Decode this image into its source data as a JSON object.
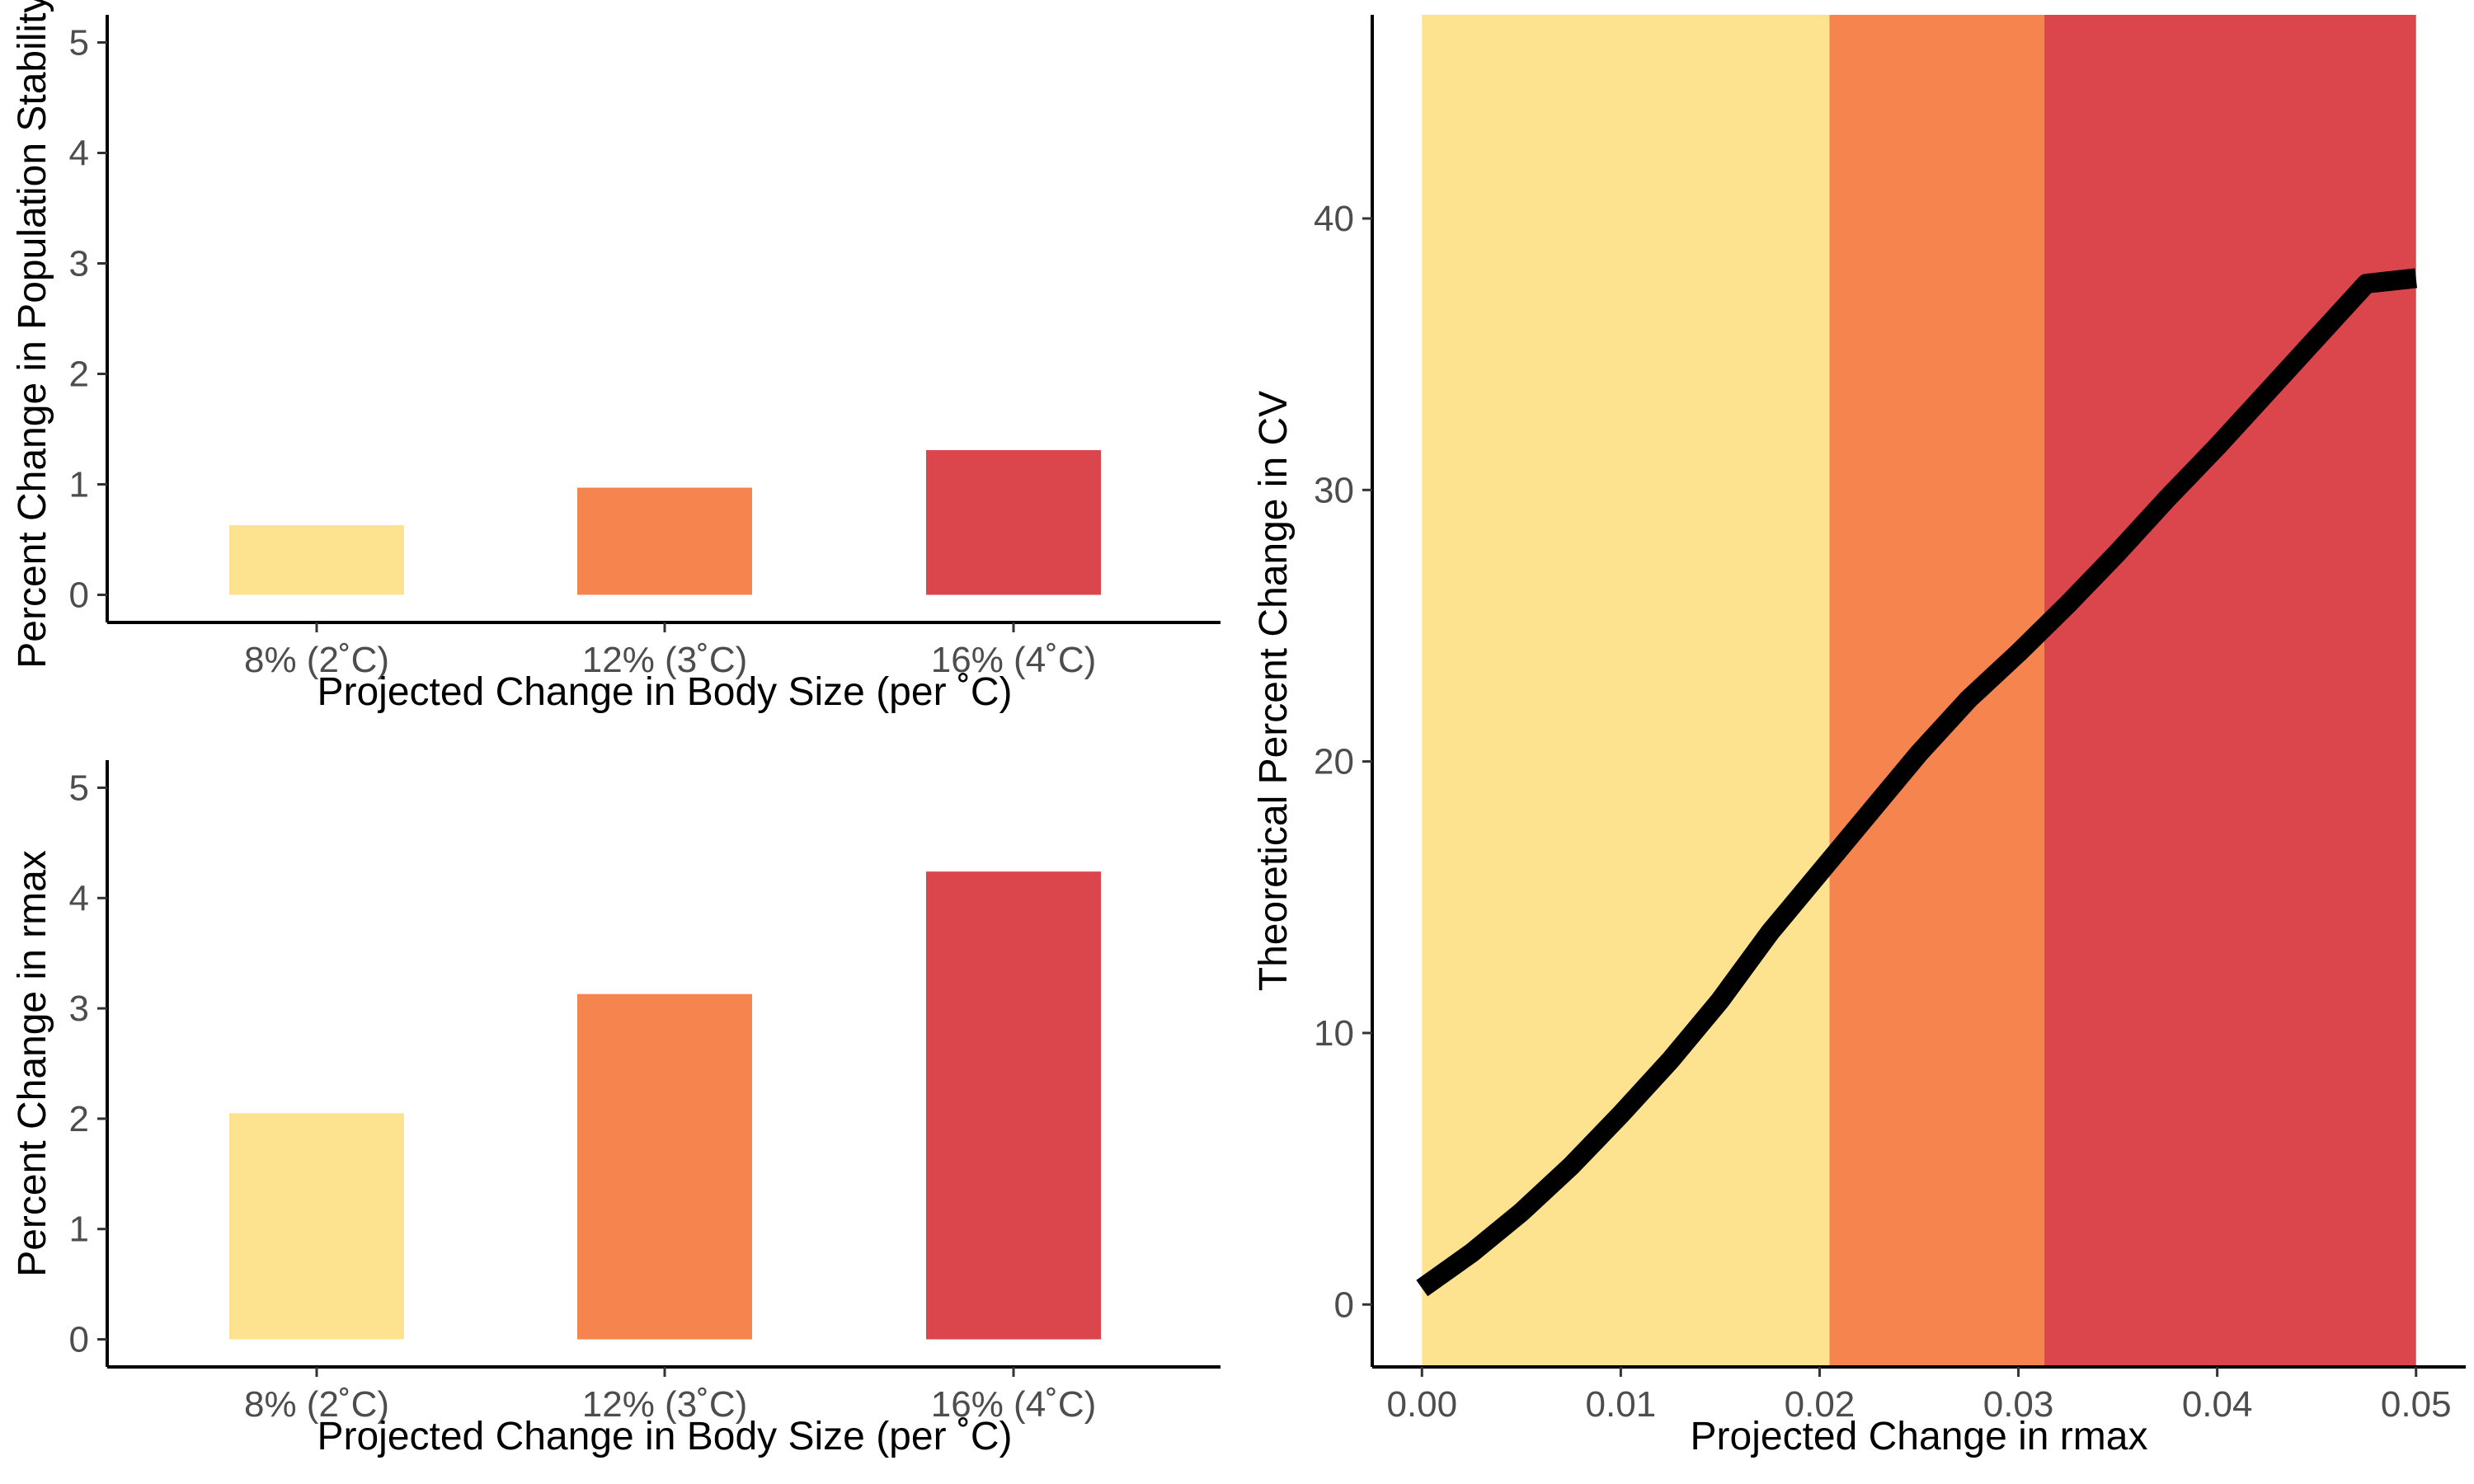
{
  "chart_data": [
    {
      "id": "top-left",
      "type": "bar",
      "categories": [
        "8% (2˚C)",
        "12% (3˚C)",
        "16% (4˚C)"
      ],
      "values": [
        0.63,
        0.97,
        1.31
      ],
      "colors": [
        "#fde290",
        "#f6844e",
        "#db464d"
      ],
      "xlabel": "Projected Change in Body Size (per ˚C)",
      "ylabel": "Percent Change in Population Stability (",
      "ylim": [
        -0.25,
        5.25
      ],
      "yticks": [
        "0",
        "1",
        "2",
        "3",
        "4",
        "5"
      ],
      "grid": false
    },
    {
      "id": "bottom-left",
      "type": "bar",
      "categories": [
        "8% (2˚C)",
        "12% (3˚C)",
        "16% (4˚C)"
      ],
      "values": [
        2.05,
        3.13,
        4.24
      ],
      "colors": [
        "#fde290",
        "#f6844e",
        "#db464d"
      ],
      "xlabel": "Projected Change in Body Size (per ˚C)",
      "ylabel": "Percent Change in rmax",
      "ylim": [
        -0.25,
        5.25
      ],
      "yticks": [
        "0",
        "1",
        "2",
        "3",
        "4",
        "5"
      ],
      "grid": false
    },
    {
      "id": "right",
      "type": "line",
      "xlabel": "Projected Change in rmax",
      "ylabel": "Theoretical Percent Change in CV",
      "xlim": [
        -0.0025,
        0.0525
      ],
      "ylim": [
        -2.3,
        47.5
      ],
      "xticks": [
        "0.00",
        "0.01",
        "0.02",
        "0.03",
        "0.04",
        "0.05"
      ],
      "yticks": [
        "0",
        "10",
        "20",
        "30",
        "40"
      ],
      "bands": [
        {
          "x0": 0.0,
          "x1": 0.0205,
          "color": "#fde290"
        },
        {
          "x0": 0.0205,
          "x1": 0.0313,
          "color": "#f6844e"
        },
        {
          "x0": 0.0313,
          "x1": 0.05,
          "color": "#db464d"
        }
      ],
      "series": [
        {
          "color": "#000000",
          "x": [
            0.0,
            0.0025,
            0.005,
            0.0075,
            0.01,
            0.0125,
            0.015,
            0.0175,
            0.02,
            0.0225,
            0.025,
            0.0275,
            0.03,
            0.0325,
            0.035,
            0.0375,
            0.04,
            0.0425,
            0.045,
            0.0475,
            0.05
          ],
          "y": [
            0.6,
            1.9,
            3.4,
            5.1,
            7.0,
            9.0,
            11.2,
            13.7,
            15.9,
            18.1,
            20.3,
            22.3,
            24.0,
            25.8,
            27.7,
            29.7,
            31.6,
            33.6,
            35.6,
            37.6,
            37.8
          ]
        }
      ],
      "grid": false
    }
  ]
}
